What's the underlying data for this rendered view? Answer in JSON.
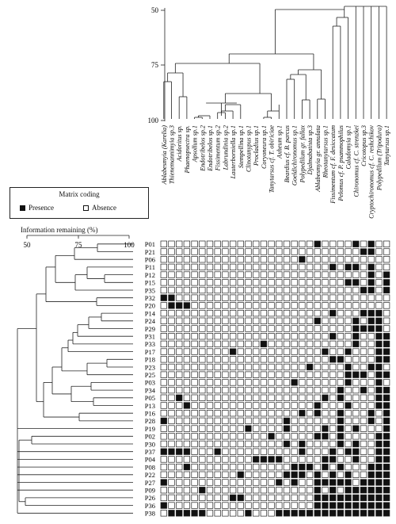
{
  "legend": {
    "title": "Matrix coding",
    "presence": "Presence",
    "absence": "Absence"
  },
  "info_axis": {
    "title": "Information remaining (%)",
    "ticks": [
      "50",
      "75",
      "100"
    ]
  },
  "top_axis": {
    "ticks": [
      "50",
      "75",
      "100"
    ]
  },
  "species": [
    "Ablabesmyia (Karelia)",
    "Thienemannimyia sp.3",
    "Acidoritus sp.",
    "Phaenopsectra sp.",
    "Apsollum sp.1",
    "Endotribelos sp.2",
    "Endotribelos sp.1",
    "Fissimentum sp.2",
    "Labrundinia sp.2",
    "Lauterborniella sp.1",
    "Stempellina sp.1",
    "Clinotanypus sp.1",
    "Procladius sp.1",
    "Coryoneura sp.1",
    "Tanytarsus cf. T. obiriciae",
    "Axheum sp.1",
    "Beardius cf. B. parcus",
    "Goeldichironomus sp.1",
    "Polypedilum gr. fallax",
    "Djalmabatista sp.3",
    "Ablabesmyia gr. annulata",
    "Rheotanytarsus sp.1",
    "Fissimentum cf. F. desiccatum",
    "Pelomus cf. P. psammophilus",
    "Caladomyia sp.1",
    "Chironomus cf. C. strenzkei",
    "Cricotopus sp.3",
    "Cryptochironomus cf. C. reshchikov",
    "Polypedilum (Tripodura)",
    "Tanytarsus sp.1"
  ],
  "sites": [
    "P01",
    "P21",
    "P06",
    "P11",
    "P12",
    "P15",
    "P35",
    "P32",
    "P20",
    "P14",
    "P24",
    "P29",
    "P31",
    "P33",
    "P17",
    "P18",
    "P23",
    "P25",
    "P03",
    "P34",
    "P05",
    "P13",
    "P16",
    "P28",
    "P19",
    "P02",
    "P30",
    "P37",
    "P04",
    "P08",
    "P22",
    "P27",
    "P09",
    "P26",
    "P36",
    "P38"
  ],
  "matrix": [
    "000000000000000000000000010100",
    "000000000000000000000000000100",
    "000000000000000000000000000000",
    "000000000000000000000000010100",
    "000000000000000000000000000101",
    "000000000000000000000000000101",
    "000000000000000000000000000101",
    "010000000000000000000000000000",
    "001100000000000000000000000000",
    "000000000000000000000000000110",
    "000000000000000000000000000110",
    "000000000000000000000000000110",
    "000000000000000000000000000011",
    "000000000000000000000000000011",
    "000000000000000000000000000011",
    "000000000000000000000000000011",
    "000000000000000000000000000110",
    "000000000000000000000000000011",
    "000000000000000000000000000010",
    "000000000000000000000000000011",
    "000000000000000000000000000011",
    "000000000000000000000000000011",
    "000000000000000000000000000101",
    "000000000000000000000000000101",
    "000000000000000000000000000001",
    "000000000000000000000000000011",
    "000000000000000000000000000011",
    "000000000000000000000000000011",
    "000000000000000000000000000011",
    "000000000000000000000000000111",
    "000000000000000000000000000111",
    "000000000000000000000000001111",
    "000000000000000000000000001111",
    "000000000000000000000000001111",
    "000000000000000000000000001111",
    "000000000000000000000000001111"
  ],
  "extra_presence": [
    [
      0,
      20
    ],
    [
      1,
      26
    ],
    [
      2,
      18
    ],
    [
      3,
      22
    ],
    [
      3,
      24
    ],
    [
      4,
      27
    ],
    [
      5,
      24
    ],
    [
      5,
      25
    ],
    [
      6,
      26
    ],
    [
      7,
      0
    ],
    [
      8,
      1
    ],
    [
      8,
      2
    ],
    [
      9,
      22
    ],
    [
      9,
      26
    ],
    [
      10,
      20
    ],
    [
      10,
      25
    ],
    [
      11,
      25
    ],
    [
      11,
      26
    ],
    [
      12,
      22
    ],
    [
      12,
      25
    ],
    [
      13,
      13
    ],
    [
      13,
      25
    ],
    [
      14,
      9
    ],
    [
      14,
      21
    ],
    [
      14,
      24
    ],
    [
      15,
      22
    ],
    [
      15,
      23
    ],
    [
      16,
      19
    ],
    [
      16,
      24
    ],
    [
      17,
      24
    ],
    [
      17,
      25
    ],
    [
      17,
      26
    ],
    [
      18,
      17
    ],
    [
      18,
      24
    ],
    [
      18,
      28
    ],
    [
      19,
      23
    ],
    [
      19,
      26
    ],
    [
      20,
      2
    ],
    [
      20,
      21
    ],
    [
      20,
      23
    ],
    [
      21,
      3
    ],
    [
      21,
      20
    ],
    [
      21,
      24
    ],
    [
      22,
      18
    ],
    [
      22,
      20
    ],
    [
      22,
      23
    ],
    [
      23,
      0
    ],
    [
      23,
      16
    ],
    [
      23,
      23
    ],
    [
      24,
      11
    ],
    [
      24,
      16
    ],
    [
      24,
      21
    ],
    [
      24,
      23
    ],
    [
      24,
      25
    ],
    [
      25,
      14
    ],
    [
      25,
      20
    ],
    [
      25,
      21
    ],
    [
      25,
      23
    ],
    [
      26,
      16
    ],
    [
      26,
      18
    ],
    [
      26,
      23
    ],
    [
      26,
      25
    ],
    [
      27,
      0
    ],
    [
      27,
      1
    ],
    [
      27,
      2
    ],
    [
      27,
      3
    ],
    [
      27,
      7
    ],
    [
      27,
      18
    ],
    [
      27,
      22
    ],
    [
      27,
      24
    ],
    [
      27,
      25
    ],
    [
      28,
      12
    ],
    [
      28,
      13
    ],
    [
      28,
      14
    ],
    [
      28,
      15
    ],
    [
      28,
      21
    ],
    [
      28,
      22
    ],
    [
      28,
      25
    ],
    [
      29,
      3
    ],
    [
      29,
      17
    ],
    [
      29,
      18
    ],
    [
      29,
      19
    ],
    [
      29,
      21
    ],
    [
      29,
      23
    ],
    [
      30,
      10
    ],
    [
      30,
      16
    ],
    [
      30,
      17
    ],
    [
      30,
      18
    ],
    [
      30,
      20
    ],
    [
      30,
      22
    ],
    [
      30,
      24
    ],
    [
      31,
      0
    ],
    [
      31,
      15
    ],
    [
      31,
      17
    ],
    [
      31,
      20
    ],
    [
      31,
      21
    ],
    [
      31,
      22
    ],
    [
      31,
      23
    ],
    [
      31,
      24
    ],
    [
      32,
      5
    ],
    [
      32,
      20
    ],
    [
      32,
      22
    ],
    [
      32,
      24
    ],
    [
      32,
      25
    ],
    [
      33,
      9
    ],
    [
      33,
      10
    ],
    [
      33,
      20
    ],
    [
      33,
      21
    ],
    [
      33,
      22
    ],
    [
      33,
      23
    ],
    [
      33,
      24
    ],
    [
      33,
      25
    ],
    [
      34,
      0
    ],
    [
      34,
      20
    ],
    [
      34,
      21
    ],
    [
      34,
      22
    ],
    [
      34,
      23
    ],
    [
      34,
      24
    ],
    [
      34,
      25
    ],
    [
      35,
      1
    ],
    [
      35,
      2
    ],
    [
      35,
      3
    ],
    [
      35,
      4
    ],
    [
      35,
      5
    ],
    [
      35,
      11
    ],
    [
      35,
      15
    ],
    [
      35,
      16
    ],
    [
      35,
      17
    ],
    [
      35,
      18
    ],
    [
      35,
      19
    ],
    [
      35,
      20
    ],
    [
      35,
      21
    ],
    [
      35,
      22
    ],
    [
      35,
      23
    ],
    [
      35,
      24
    ],
    [
      35,
      25
    ]
  ]
}
